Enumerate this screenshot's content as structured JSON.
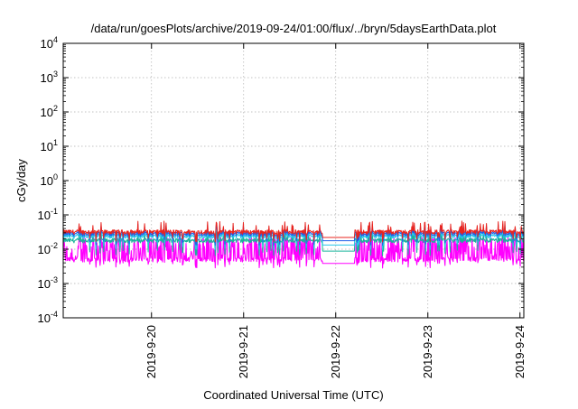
{
  "chart_data": {
    "type": "line",
    "title": "/data/run/goesPlots/archive/2019-09-24/01:00/flux/../bryn/5daysEarthData.plot",
    "xlabel": "Coordinated Universal Time (UTC)",
    "ylabel": "cGy/day",
    "yscale": "log",
    "ylim": [
      0.0001,
      10000
    ],
    "xlim": [
      "2019-09-19 01:00",
      "2019-09-24 01:00"
    ],
    "grid": true,
    "x_ticks": [
      {
        "label": "2019-9-20",
        "day": "2019-09-20 00:00"
      },
      {
        "label": "2019-9-21",
        "day": "2019-09-21 00:00"
      },
      {
        "label": "2019-9-22",
        "day": "2019-09-22 00:00"
      },
      {
        "label": "2019-9-23",
        "day": "2019-09-23 00:00"
      },
      {
        "label": "2019-9-24",
        "day": "2019-09-24 00:00"
      }
    ],
    "y_ticks": [
      {
        "base": "10",
        "exp": "4"
      },
      {
        "base": "10",
        "exp": "3"
      },
      {
        "base": "10",
        "exp": "2"
      },
      {
        "base": "10",
        "exp": "1"
      },
      {
        "base": "10",
        "exp": "0"
      },
      {
        "base": "10",
        "exp": "-1"
      },
      {
        "base": "10",
        "exp": "-2"
      },
      {
        "base": "10",
        "exp": "-3"
      },
      {
        "base": "10",
        "exp": "-4"
      }
    ],
    "series": [
      {
        "color": "#e8241f",
        "values": {
          "base": 0.032,
          "spike": 0.055,
          "dip": 0.02
        }
      },
      {
        "color": "#1f5fe8",
        "values": {
          "base": 0.028,
          "spike": 0.045,
          "dip": 0.016
        }
      },
      {
        "color": "#19b49a",
        "values": {
          "base": 0.018,
          "spike": 0.03,
          "dip": 0.008
        }
      },
      {
        "color": "#27c8e8",
        "values": {
          "base": 0.024,
          "spike": 0.04,
          "dip": 0.012
        }
      },
      {
        "color": "#ff00ff",
        "values": {
          "base": 0.005,
          "spike": 0.025,
          "dip": 0.0035
        }
      }
    ],
    "data_gap": {
      "start": "2019-09-21 20:30",
      "end": "2019-09-22 05:00"
    }
  }
}
